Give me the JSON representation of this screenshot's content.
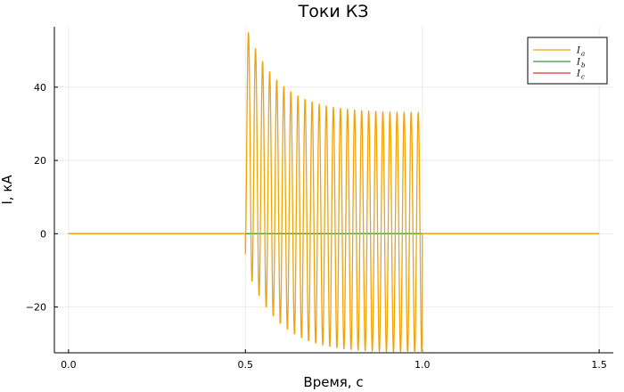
{
  "chart_data": {
    "type": "line",
    "title": "Токи КЗ",
    "xlabel": "Время, с",
    "ylabel": "I, кА",
    "xlim": [
      -0.04,
      1.54
    ],
    "ylim": [
      -32.5,
      56.5
    ],
    "xticks": [
      0.0,
      0.5,
      1.0,
      1.5
    ],
    "xtick_labels": [
      "0.0",
      "0.5",
      "1.0",
      "1.5"
    ],
    "yticks": [
      -20,
      0,
      20,
      40
    ],
    "ytick_labels": [
      "−20",
      "0",
      "20",
      "40"
    ],
    "grid": true,
    "legend_position": "top-right",
    "fault_interval": [
      0.5,
      1.0
    ],
    "series": [
      {
        "name": "I",
        "subscript": "a",
        "color": "#f0a30a",
        "shape": "damped sinusoid during fault interval, zero elsewhere",
        "frequency_hz": 50,
        "first_peak": 54,
        "first_trough": -5.5,
        "steady_peak": 33,
        "steady_trough": -32.5,
        "dc_offset_initial": 24,
        "decay_time_constant_s": 0.09
      },
      {
        "name": "I",
        "subscript": "b",
        "color": "#3a9a3a",
        "shape": "zero",
        "constant_value": 0
      },
      {
        "name": "I",
        "subscript": "c",
        "color": "#e0302a",
        "shape": "zero",
        "constant_value": 0
      }
    ]
  }
}
